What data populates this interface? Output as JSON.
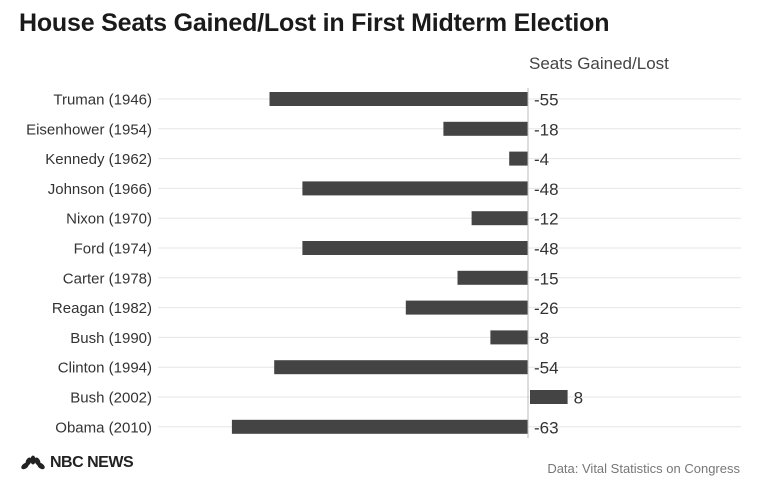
{
  "chart_data": {
    "type": "bar",
    "orientation": "horizontal",
    "title": "House Seats Gained/Lost in First Midterm Election",
    "value_label": "Seats Gained/Lost",
    "categories": [
      "Truman (1946)",
      "Eisenhower (1954)",
      "Kennedy (1962)",
      "Johnson (1966)",
      "Nixon (1970)",
      "Ford (1974)",
      "Carter (1978)",
      "Reagan (1982)",
      "Bush (1990)",
      "Clinton (1994)",
      "Bush (2002)",
      "Obama (2010)"
    ],
    "values": [
      -55,
      -18,
      -4,
      -48,
      -12,
      -48,
      -15,
      -26,
      -8,
      -54,
      8,
      -63
    ],
    "data_labels": [
      "-55",
      "-18",
      "-4",
      "-48",
      "-12",
      "-48",
      "-15",
      "-26",
      "-8",
      "-54",
      "8",
      "-63"
    ],
    "xlim": [
      -63,
      8
    ],
    "grid": true,
    "bar_color": "#444444"
  },
  "footer": {
    "logo": "NBC NEWS",
    "source": "Data: Vital Statistics on Congress"
  }
}
